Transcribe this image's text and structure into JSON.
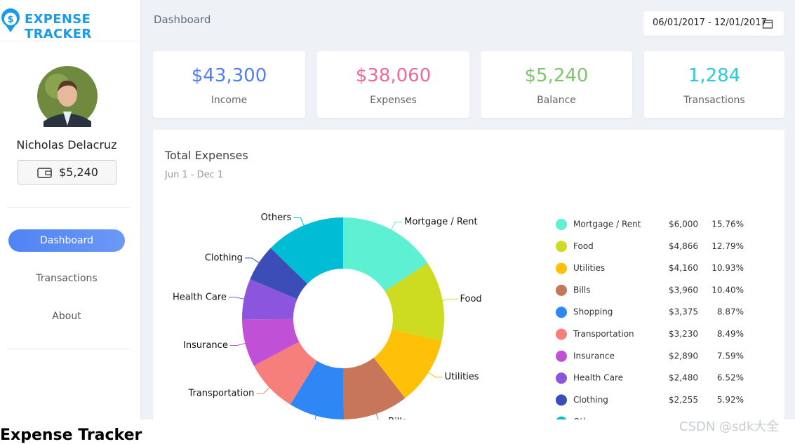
{
  "header": {
    "logo": "EXPENSE TRACKER",
    "breadcrumb": "Dashboard",
    "date_range": "06/01/2017 - 12/01/2017"
  },
  "profile": {
    "name": "Nicholas Delacruz",
    "wallet": "$5,240"
  },
  "nav": [
    "Dashboard",
    "Transactions",
    "About"
  ],
  "stats": [
    {
      "value": "$43,300",
      "label": "Income",
      "color": "#4f7ff2"
    },
    {
      "value": "$38,060",
      "label": "Expenses",
      "color": "#f06a95"
    },
    {
      "value": "$5,240",
      "label": "Balance",
      "color": "#7cc66c"
    },
    {
      "value": "1,284",
      "label": "Transactions",
      "color": "#2ec8dc"
    }
  ],
  "chart_data": {
    "type": "donut",
    "title": "Total Expenses",
    "subtitle": "Jun 1 - Dec 1",
    "categories": [
      "Mortgage / Rent",
      "Food",
      "Utilities",
      "Bills",
      "Shopping",
      "Transportation",
      "Insurance",
      "Health Care",
      "Clothing",
      "Others"
    ],
    "values": [
      6000,
      4866,
      4160,
      3960,
      3375,
      3230,
      2890,
      2480,
      2255,
      4844
    ],
    "value_labels": [
      "$6,000",
      "$4,866",
      "$4,160",
      "$3,960",
      "$3,375",
      "$3,230",
      "$2,890",
      "$2,480",
      "$2,255",
      null
    ],
    "percent_labels": [
      "15.76%",
      "12.79%",
      "10.93%",
      "10.40%",
      "8.87%",
      "8.49%",
      "7.59%",
      "6.52%",
      "5.92%",
      null
    ],
    "colors": [
      "#5ef0d2",
      "#cddc21",
      "#ffc107",
      "#c8765a",
      "#2e87f5",
      "#f67f7c",
      "#c051d6",
      "#8b55dd",
      "#3d4db7",
      "#00bcd4"
    ]
  },
  "footer": {
    "heading": "Expense Tracker",
    "watermark": "CSDN @sdk大全"
  }
}
